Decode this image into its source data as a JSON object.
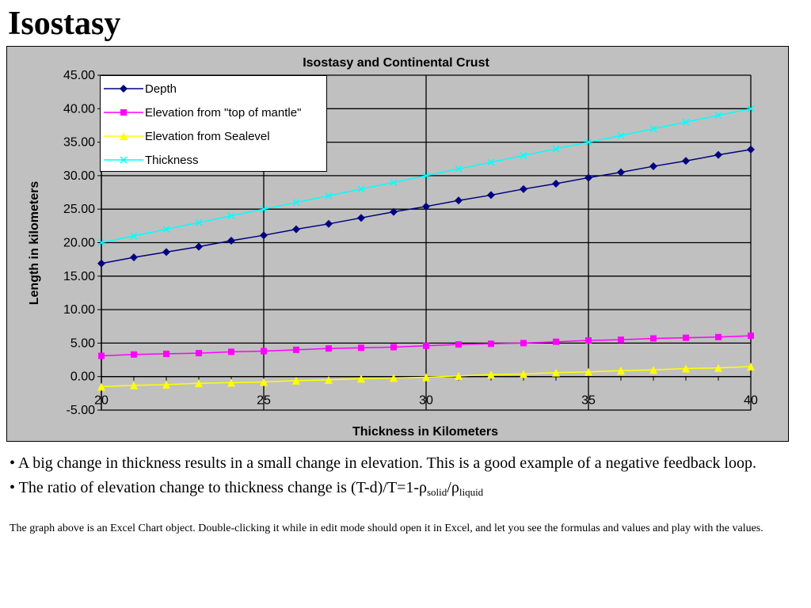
{
  "slide": {
    "title": "Isostasy",
    "bullet_1": "• A big change in thickness results in a small change in elevation. This is a good example of a negative feedback loop.",
    "bullet_2": {
      "prefix": "• The ratio of elevation change to thickness change is (T-d)/T=1-ρ",
      "sub_1": "solid",
      "slash": "/ρ",
      "sub_2": "liquid"
    },
    "note": "The graph above is an Excel Chart object. Double-clicking it while in edit mode should open it in Excel, and let you see the formulas and values and play with the values."
  },
  "colors": {
    "background": "#ffffff",
    "chart_area": "#c0c0c0",
    "depth": "#000080",
    "elevation_mantle": "#ff00ff",
    "elevation_sealevel": "#ffff00",
    "thickness": "#00ffff"
  },
  "chart_data": {
    "type": "line",
    "title": "Isostasy and Continental Crust",
    "xlabel": "Thickness in Kilometers",
    "ylabel": "Length in kilometers",
    "xlim": [
      20,
      40
    ],
    "ylim": [
      -5,
      45
    ],
    "xticks": [
      20,
      25,
      30,
      35,
      40
    ],
    "yticks": [
      "-5.00",
      "0.00",
      "5.00",
      "10.00",
      "15.00",
      "20.00",
      "25.00",
      "30.00",
      "35.00",
      "40.00",
      "45.00"
    ],
    "grid": true,
    "legend_position": "top-left",
    "x": [
      20,
      21,
      22,
      23,
      24,
      25,
      26,
      27,
      28,
      29,
      30,
      31,
      32,
      33,
      34,
      35,
      36,
      37,
      38,
      39,
      40
    ],
    "series": [
      {
        "name": "Depth",
        "marker": "diamond",
        "color": "#000080",
        "values": [
          16.9,
          17.8,
          18.6,
          19.4,
          20.3,
          21.1,
          22.0,
          22.8,
          23.7,
          24.6,
          25.4,
          26.3,
          27.1,
          28.0,
          28.8,
          29.7,
          30.5,
          31.4,
          32.2,
          33.1,
          33.9
        ]
      },
      {
        "name": "Elevation from \"top of mantle\"",
        "marker": "square",
        "color": "#ff00ff",
        "values": [
          3.1,
          3.3,
          3.4,
          3.5,
          3.7,
          3.8,
          4.0,
          4.2,
          4.3,
          4.4,
          4.6,
          4.8,
          4.9,
          5.0,
          5.2,
          5.4,
          5.5,
          5.7,
          5.8,
          5.9,
          6.1
        ]
      },
      {
        "name": "Elevation from Sealevel",
        "marker": "triangle",
        "color": "#ffff00",
        "values": [
          -1.5,
          -1.3,
          -1.2,
          -1.0,
          -0.9,
          -0.8,
          -0.6,
          -0.5,
          -0.3,
          -0.2,
          -0.1,
          0.1,
          0.3,
          0.4,
          0.6,
          0.7,
          0.9,
          1.0,
          1.2,
          1.3,
          1.5
        ]
      },
      {
        "name": "Thickness",
        "marker": "x",
        "color": "#00ffff",
        "values": [
          20,
          21,
          22,
          23,
          24,
          25,
          26,
          27,
          28,
          29,
          30,
          31,
          32,
          33,
          34,
          35,
          36,
          37,
          38,
          39,
          40
        ]
      }
    ]
  }
}
